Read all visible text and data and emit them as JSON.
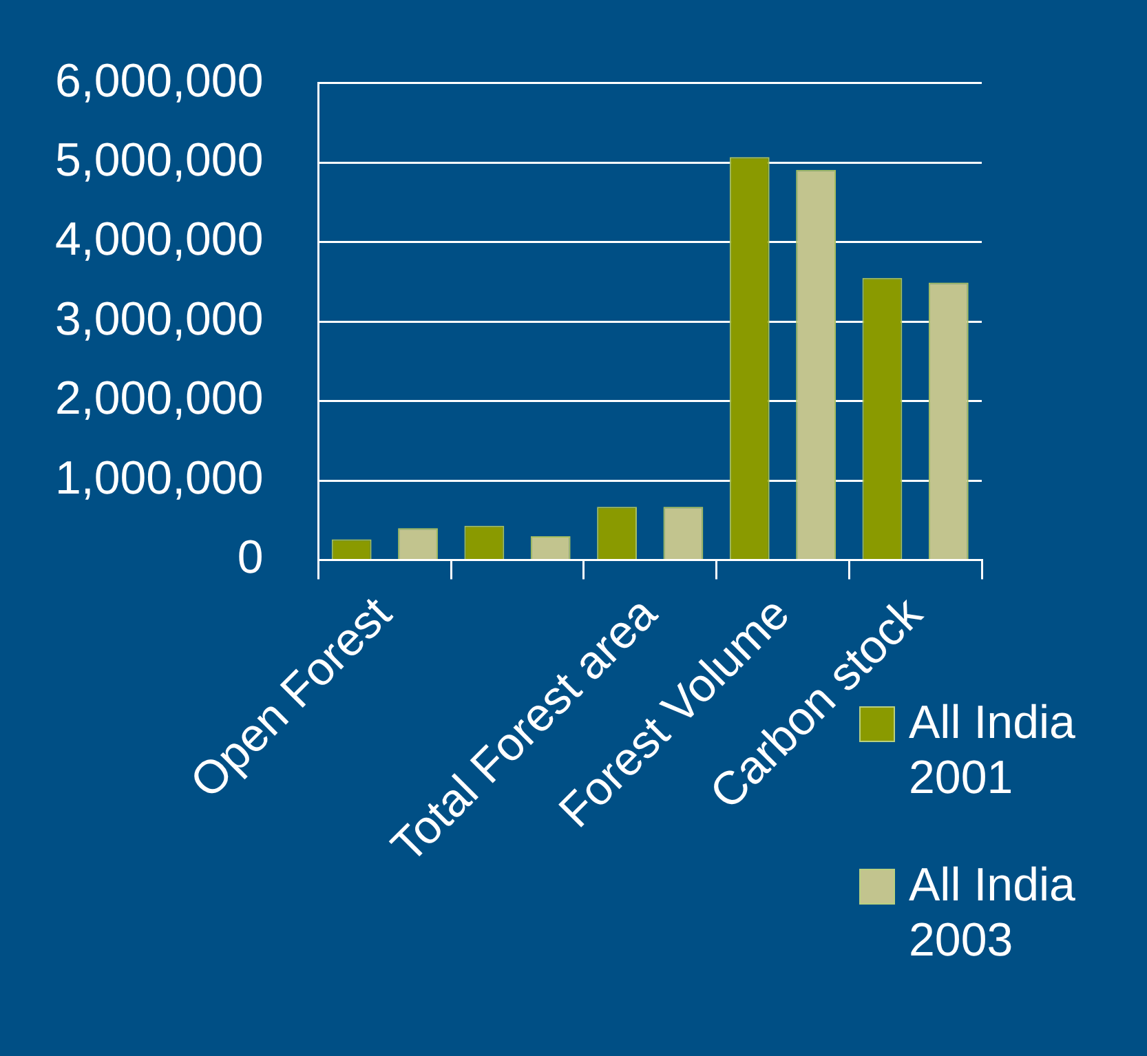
{
  "chart_data": {
    "type": "bar",
    "categories": [
      "Open Forest",
      null,
      "Total Forest area",
      "Forest Volume",
      "Carbon stock"
    ],
    "series": [
      {
        "name": "All India 2001",
        "color": "#8a9a00",
        "values": [
          260000,
          430000,
          670000,
          5070000,
          3550000
        ]
      },
      {
        "name": "All India 2003",
        "color": "#c2c48e",
        "values": [
          400000,
          300000,
          670000,
          4910000,
          3490000
        ]
      }
    ],
    "ylim": [
      0,
      6000000
    ],
    "yticks": [
      {
        "value": 0,
        "label": "0"
      },
      {
        "value": 1000000,
        "label": "1,000,000"
      },
      {
        "value": 2000000,
        "label": "2,000,000"
      },
      {
        "value": 3000000,
        "label": "3,000,000"
      },
      {
        "value": 4000000,
        "label": "4,000,000"
      },
      {
        "value": 5000000,
        "label": "5,000,000"
      },
      {
        "value": 6000000,
        "label": "6,000,000"
      }
    ],
    "grid": "y",
    "legend": "bottom right"
  }
}
